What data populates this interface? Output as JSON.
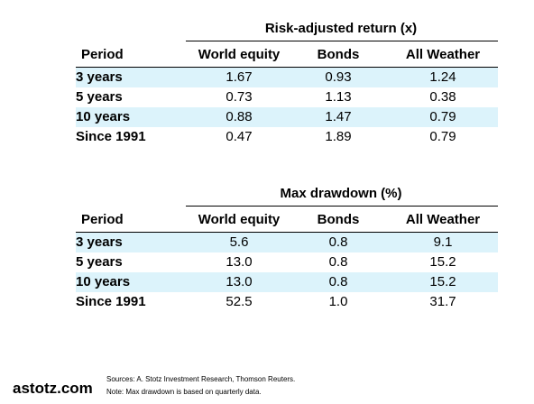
{
  "chart_data": [
    {
      "type": "table",
      "title": "Risk-adjusted return (x)",
      "columns": [
        "Period",
        "World equity",
        "Bonds",
        "All Weather"
      ],
      "rows": [
        {
          "period": "3 years",
          "values": [
            "1.67",
            "0.93",
            "1.24"
          ],
          "shaded": true
        },
        {
          "period": "5 years",
          "values": [
            "0.73",
            "1.13",
            "0.38"
          ],
          "shaded": false
        },
        {
          "period": "10 years",
          "values": [
            "0.88",
            "1.47",
            "0.79"
          ],
          "shaded": true
        },
        {
          "period": "Since 1991",
          "values": [
            "0.47",
            "1.89",
            "0.79"
          ],
          "shaded": false
        }
      ]
    },
    {
      "type": "table",
      "title": "Max drawdown (%)",
      "columns": [
        "Period",
        "World equity",
        "Bonds",
        "All Weather"
      ],
      "rows": [
        {
          "period": "3 years",
          "values": [
            "5.6",
            "0.8",
            "9.1"
          ],
          "shaded": true
        },
        {
          "period": "5 years",
          "values": [
            "13.0",
            "0.8",
            "15.2"
          ],
          "shaded": false
        },
        {
          "period": "10 years",
          "values": [
            "13.0",
            "0.8",
            "15.2"
          ],
          "shaded": true
        },
        {
          "period": "Since 1991",
          "values": [
            "52.5",
            "1.0",
            "31.7"
          ],
          "shaded": false
        }
      ]
    }
  ],
  "colors": {
    "row_shade": "#dcf3fb",
    "text": "#000000",
    "rule": "#000000"
  },
  "footer": {
    "brand": "astotz.com",
    "sources": "Sources: A. Stotz Investment Research, Thomson Reuters.",
    "note": "Note: Max drawdown is based on quarterly data."
  }
}
